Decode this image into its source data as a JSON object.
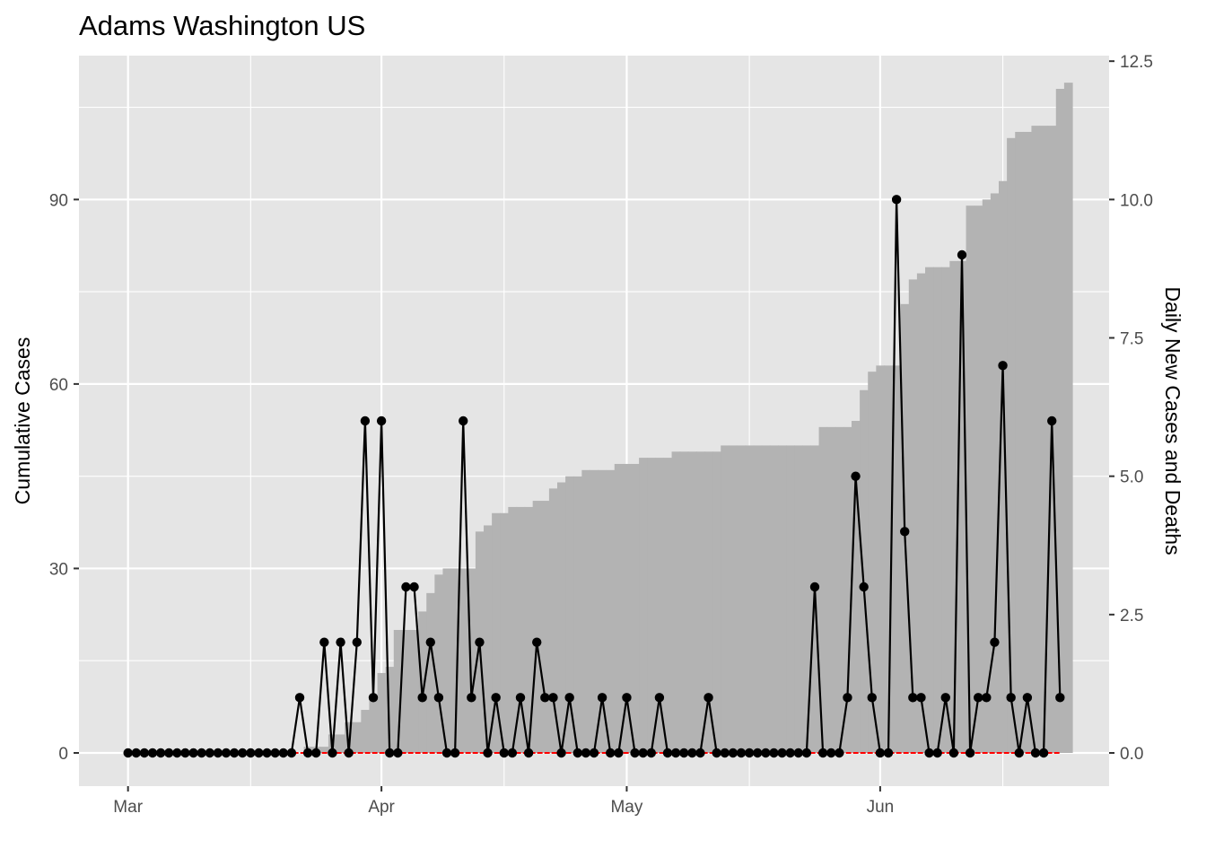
{
  "chart_data": {
    "type": "line",
    "title": "Adams Washington US",
    "ylabel": "Cumulative Cases",
    "y2label": "Daily New Cases and Deaths",
    "xlabel": "",
    "x_start": "2020-03-01",
    "x_end": "2020-06-25",
    "xlim": [
      "2020-02-24",
      "2020-06-29"
    ],
    "ylim": [
      -5.4,
      113.4
    ],
    "y2lim": [
      -0.6,
      12.6
    ],
    "x_ticks": [
      {
        "date": "2020-03-01",
        "label": "Mar"
      },
      {
        "date": "2020-04-01",
        "label": "Apr"
      },
      {
        "date": "2020-05-01",
        "label": "May"
      },
      {
        "date": "2020-06-01",
        "label": "Jun"
      }
    ],
    "x_minor_ticks": [
      "2020-03-16",
      "2020-04-16",
      "2020-05-16",
      "2020-06-16"
    ],
    "y_ticks": [
      0,
      30,
      60,
      90
    ],
    "y_tick_labels": [
      "0",
      "30",
      "60",
      "90"
    ],
    "y_minor_ticks": [
      15,
      45,
      75,
      105
    ],
    "y2_ticks": [
      0,
      2.5,
      5,
      7.5,
      10,
      12.5
    ],
    "y2_tick_labels": [
      "0.0",
      "2.5",
      "5.0",
      "7.5",
      "10.0",
      "12.5"
    ],
    "grid": true,
    "series": [
      {
        "name": "",
        "kind": "area-step",
        "axis": "left",
        "color": "#b3b3b3",
        "values": [
          0,
          0,
          0,
          0,
          0,
          0,
          0,
          0,
          0,
          0,
          0,
          0,
          0,
          0,
          0,
          0,
          0,
          0,
          0,
          0,
          0,
          0,
          1,
          1,
          1,
          3,
          3,
          5,
          5,
          7,
          9,
          13,
          14,
          20,
          20,
          20,
          23,
          26,
          29,
          30,
          30,
          30,
          30,
          36,
          37,
          39,
          39,
          40,
          40,
          40,
          41,
          41,
          43,
          44,
          45,
          45,
          46,
          46,
          46,
          46,
          47,
          47,
          47,
          48,
          48,
          48,
          48,
          49,
          49,
          49,
          49,
          49,
          49,
          50,
          50,
          50,
          50,
          50,
          50,
          50,
          50,
          50,
          50,
          50,
          50,
          53,
          53,
          53,
          53,
          54,
          59,
          62,
          63,
          63,
          63,
          73,
          77,
          78,
          79,
          79,
          79,
          80,
          80,
          89,
          89,
          90,
          91,
          93,
          100,
          101,
          101,
          102,
          102,
          102,
          108,
          109
        ]
      },
      {
        "name": "",
        "kind": "line-points",
        "axis": "right",
        "color": "#000000",
        "values": [
          0,
          0,
          0,
          0,
          0,
          0,
          0,
          0,
          0,
          0,
          0,
          0,
          0,
          0,
          0,
          0,
          0,
          0,
          0,
          0,
          0,
          1,
          0,
          0,
          2,
          0,
          2,
          0,
          2,
          6,
          1,
          6,
          0,
          0,
          3,
          3,
          1,
          2,
          1,
          0,
          0,
          6,
          1,
          2,
          0,
          1,
          0,
          0,
          1,
          0,
          2,
          1,
          1,
          0,
          1,
          0,
          0,
          0,
          1,
          0,
          0,
          1,
          0,
          0,
          0,
          1,
          0,
          0,
          0,
          0,
          0,
          1,
          0,
          0,
          0,
          0,
          0,
          0,
          0,
          0,
          0,
          0,
          0,
          0,
          3,
          0,
          0,
          0,
          1,
          5,
          3,
          1,
          0,
          0,
          10,
          4,
          1,
          1,
          0,
          0,
          1,
          0,
          9,
          0,
          1,
          1,
          2,
          7,
          1,
          0,
          1,
          0,
          0,
          6,
          1
        ]
      },
      {
        "name": "",
        "kind": "line",
        "axis": "right",
        "color": "#ff0000",
        "values": [
          0,
          0,
          0,
          0,
          0,
          0,
          0,
          0,
          0,
          0,
          0,
          0,
          0,
          0,
          0,
          0,
          0,
          0,
          0,
          0,
          0,
          0,
          0,
          0,
          0,
          0,
          0,
          0,
          0,
          0,
          0,
          0,
          0,
          0,
          0,
          0,
          0,
          0,
          0,
          0,
          0,
          0,
          0,
          0,
          0,
          0,
          0,
          0,
          0,
          0,
          0,
          0,
          0,
          0,
          0,
          0,
          0,
          0,
          0,
          0,
          0,
          0,
          0,
          0,
          0,
          0,
          0,
          0,
          0,
          0,
          0,
          0,
          0,
          0,
          0,
          0,
          0,
          0,
          0,
          0,
          0,
          0,
          0,
          0,
          0,
          0,
          0,
          0,
          0,
          0,
          0,
          0,
          0,
          0,
          0,
          0,
          0,
          0,
          0,
          0,
          0,
          0,
          0,
          0,
          0,
          0,
          0,
          0,
          0,
          0,
          0,
          0,
          0,
          0,
          0
        ]
      }
    ],
    "colors": {
      "panel_bg": "#e5e5e5",
      "grid": "#ffffff",
      "tick_text": "#4d4d4d",
      "tick_line": "#333333"
    }
  }
}
